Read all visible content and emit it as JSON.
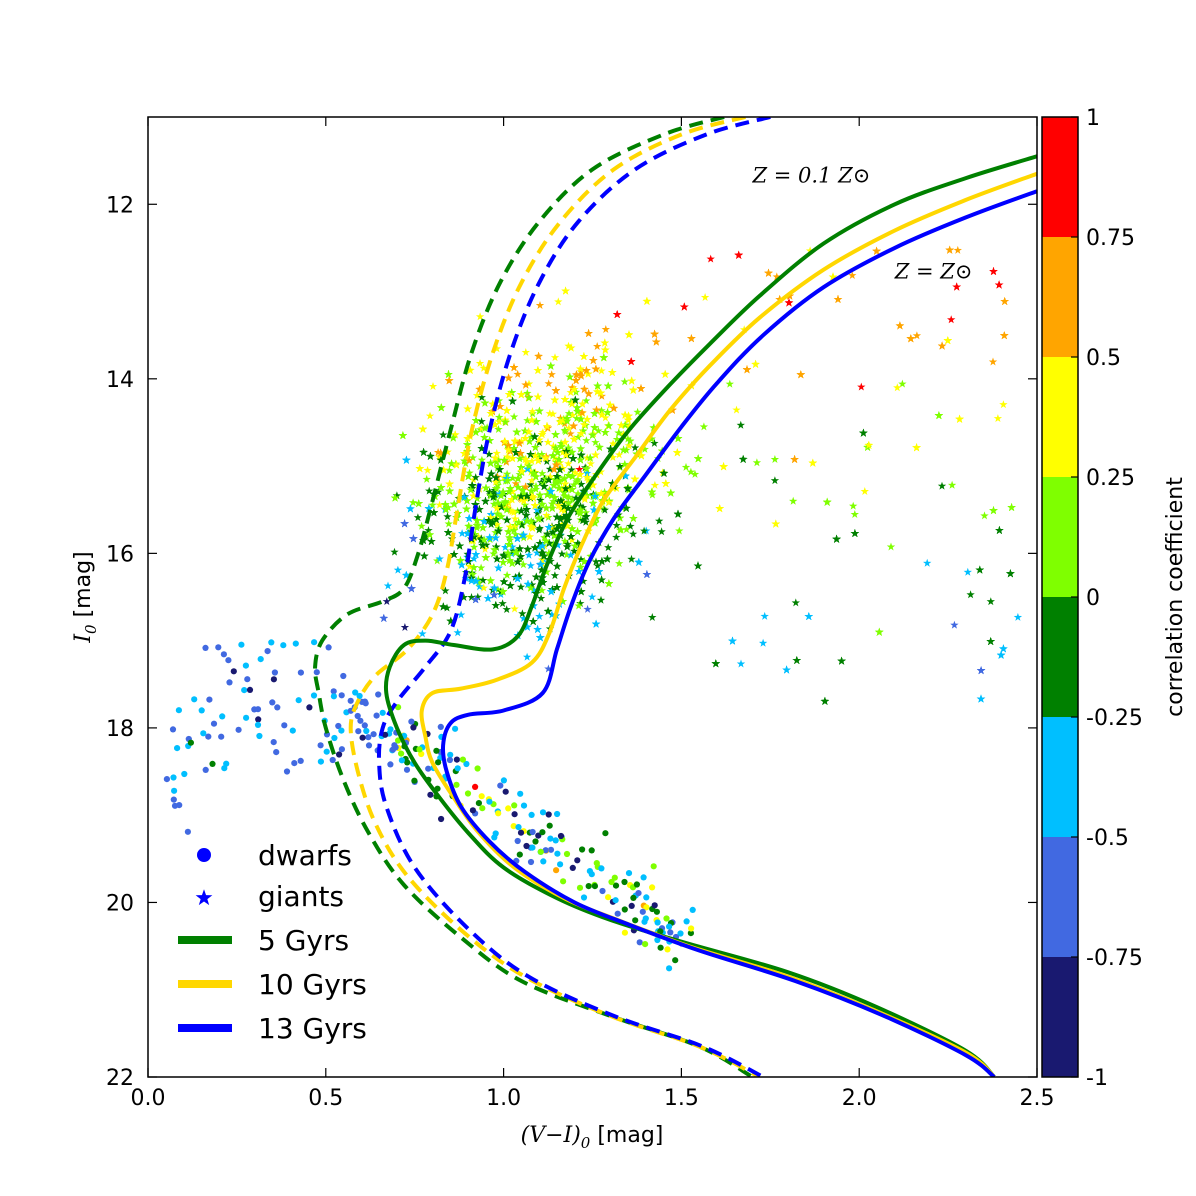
{
  "chart_data": {
    "type": "scatter",
    "xlabel_math": "(V−I)",
    "xlabel_sub": "0",
    "xlabel_unit": " [mag]",
    "ylabel_math": "I",
    "ylabel_sub": "0",
    "ylabel_unit": " [mag]",
    "xlim": [
      0.0,
      2.5
    ],
    "ylim": [
      22,
      11
    ],
    "y_inverted": true,
    "xticks": [
      "0.0",
      "0.5",
      "1.0",
      "1.5",
      "2.0",
      "2.5"
    ],
    "yticks": [
      "12",
      "14",
      "16",
      "18",
      "20",
      "22"
    ],
    "grid": false,
    "colorbar": {
      "label": "correlation coefficient",
      "range": [
        -1,
        1
      ],
      "ticks": [
        "1",
        "0.75",
        "0.5",
        "0.25",
        "0",
        "-0.25",
        "-0.5",
        "-0.75",
        "-1"
      ],
      "colors": [
        "#ff0000",
        "#ffa500",
        "#ffff00",
        "#7fff00",
        "#008000",
        "#00bfff",
        "#4169e1",
        "#191970"
      ]
    },
    "annotations": [
      {
        "text": "Z = 0.1 Z⊙",
        "x": 1.7,
        "y": 11.75
      },
      {
        "text": "Z = Z⊙",
        "x": 2.1,
        "y": 12.85
      }
    ],
    "legend": {
      "position": "lower-left",
      "markers": [
        {
          "label": "dwarfs",
          "marker": "circle",
          "color": "#0000ff"
        },
        {
          "label": "giants",
          "marker": "star",
          "color": "#0000ff"
        }
      ],
      "lines": [
        {
          "label": "5 Gyrs",
          "color": "#008000"
        },
        {
          "label": "10 Gyrs",
          "color": "#ffd700"
        },
        {
          "label": "13 Gyrs",
          "color": "#0000ff"
        }
      ]
    },
    "isochrones": [
      {
        "age": "5 Gyrs",
        "metallicity": "Z = Z⊙",
        "style": "solid",
        "color": "#008000",
        "points": [
          [
            2.5,
            11.45
          ],
          [
            2.3,
            11.7
          ],
          [
            2.1,
            12.0
          ],
          [
            1.9,
            12.45
          ],
          [
            1.72,
            13.05
          ],
          [
            1.58,
            13.6
          ],
          [
            1.46,
            14.1
          ],
          [
            1.35,
            14.6
          ],
          [
            1.26,
            15.1
          ],
          [
            1.18,
            15.6
          ],
          [
            1.12,
            16.15
          ],
          [
            1.08,
            16.6
          ],
          [
            1.04,
            16.95
          ],
          [
            0.97,
            17.1
          ],
          [
            0.86,
            17.05
          ],
          [
            0.78,
            17.0
          ],
          [
            0.72,
            17.05
          ],
          [
            0.68,
            17.3
          ],
          [
            0.67,
            17.6
          ],
          [
            0.7,
            18.0
          ],
          [
            0.75,
            18.4
          ],
          [
            0.82,
            18.8
          ],
          [
            0.9,
            19.2
          ],
          [
            1.0,
            19.6
          ],
          [
            1.15,
            19.95
          ],
          [
            1.3,
            20.2
          ],
          [
            1.5,
            20.45
          ],
          [
            1.8,
            20.8
          ],
          [
            2.05,
            21.2
          ],
          [
            2.3,
            21.7
          ],
          [
            2.38,
            22.0
          ]
        ]
      },
      {
        "age": "10 Gyrs",
        "metallicity": "Z = Z⊙",
        "style": "solid",
        "color": "#ffd700",
        "points": [
          [
            2.5,
            11.65
          ],
          [
            2.3,
            11.95
          ],
          [
            2.1,
            12.3
          ],
          [
            1.9,
            12.75
          ],
          [
            1.72,
            13.3
          ],
          [
            1.58,
            13.85
          ],
          [
            1.47,
            14.35
          ],
          [
            1.37,
            14.9
          ],
          [
            1.28,
            15.4
          ],
          [
            1.22,
            15.9
          ],
          [
            1.17,
            16.4
          ],
          [
            1.13,
            16.9
          ],
          [
            1.08,
            17.25
          ],
          [
            0.98,
            17.45
          ],
          [
            0.88,
            17.55
          ],
          [
            0.8,
            17.6
          ],
          [
            0.77,
            17.8
          ],
          [
            0.78,
            18.1
          ],
          [
            0.8,
            18.4
          ],
          [
            0.86,
            18.8
          ],
          [
            0.93,
            19.2
          ],
          [
            1.03,
            19.6
          ],
          [
            1.17,
            19.95
          ],
          [
            1.32,
            20.2
          ],
          [
            1.52,
            20.5
          ],
          [
            1.8,
            20.85
          ],
          [
            2.05,
            21.25
          ],
          [
            2.3,
            21.72
          ],
          [
            2.38,
            22.0
          ]
        ]
      },
      {
        "age": "13 Gyrs",
        "metallicity": "Z = Z⊙",
        "style": "solid",
        "color": "#0000ff",
        "points": [
          [
            2.5,
            11.85
          ],
          [
            2.3,
            12.15
          ],
          [
            2.1,
            12.5
          ],
          [
            1.9,
            12.95
          ],
          [
            1.73,
            13.5
          ],
          [
            1.6,
            14.05
          ],
          [
            1.5,
            14.55
          ],
          [
            1.4,
            15.1
          ],
          [
            1.31,
            15.6
          ],
          [
            1.24,
            16.1
          ],
          [
            1.19,
            16.6
          ],
          [
            1.15,
            17.1
          ],
          [
            1.11,
            17.6
          ],
          [
            1.0,
            17.8
          ],
          [
            0.9,
            17.85
          ],
          [
            0.85,
            17.95
          ],
          [
            0.83,
            18.2
          ],
          [
            0.84,
            18.5
          ],
          [
            0.88,
            18.9
          ],
          [
            0.96,
            19.3
          ],
          [
            1.06,
            19.65
          ],
          [
            1.2,
            20.0
          ],
          [
            1.35,
            20.25
          ],
          [
            1.55,
            20.55
          ],
          [
            1.82,
            20.9
          ],
          [
            2.07,
            21.3
          ],
          [
            2.3,
            21.75
          ],
          [
            2.38,
            22.0
          ]
        ]
      },
      {
        "age": "5 Gyrs",
        "metallicity": "Z = 0.1 Z⊙",
        "style": "dashed",
        "color": "#008000",
        "points": [
          [
            1.62,
            11.0
          ],
          [
            1.45,
            11.2
          ],
          [
            1.25,
            11.6
          ],
          [
            1.1,
            12.2
          ],
          [
            0.99,
            12.9
          ],
          [
            0.91,
            13.7
          ],
          [
            0.85,
            14.6
          ],
          [
            0.8,
            15.4
          ],
          [
            0.76,
            16.0
          ],
          [
            0.72,
            16.4
          ],
          [
            0.66,
            16.55
          ],
          [
            0.56,
            16.7
          ],
          [
            0.49,
            17.0
          ],
          [
            0.47,
            17.3
          ],
          [
            0.48,
            17.6
          ],
          [
            0.5,
            18.0
          ],
          [
            0.55,
            18.6
          ],
          [
            0.62,
            19.2
          ],
          [
            0.72,
            19.8
          ],
          [
            0.88,
            20.4
          ],
          [
            1.05,
            20.9
          ],
          [
            1.3,
            21.3
          ],
          [
            1.55,
            21.65
          ],
          [
            1.7,
            22.0
          ]
        ]
      },
      {
        "age": "10 Gyrs",
        "metallicity": "Z = 0.1 Z⊙",
        "style": "dashed",
        "color": "#ffd700",
        "points": [
          [
            1.68,
            11.0
          ],
          [
            1.5,
            11.2
          ],
          [
            1.31,
            11.6
          ],
          [
            1.16,
            12.2
          ],
          [
            1.05,
            12.9
          ],
          [
            0.97,
            13.7
          ],
          [
            0.91,
            14.6
          ],
          [
            0.87,
            15.5
          ],
          [
            0.84,
            16.2
          ],
          [
            0.8,
            16.7
          ],
          [
            0.73,
            17.1
          ],
          [
            0.64,
            17.4
          ],
          [
            0.59,
            17.7
          ],
          [
            0.57,
            18.0
          ],
          [
            0.59,
            18.5
          ],
          [
            0.64,
            19.1
          ],
          [
            0.73,
            19.7
          ],
          [
            0.89,
            20.35
          ],
          [
            1.06,
            20.85
          ],
          [
            1.3,
            21.3
          ],
          [
            1.55,
            21.65
          ],
          [
            1.72,
            22.0
          ]
        ]
      },
      {
        "age": "13 Gyrs",
        "metallicity": "Z = 0.1 Z⊙",
        "style": "dashed",
        "color": "#0000ff",
        "points": [
          [
            1.75,
            11.0
          ],
          [
            1.57,
            11.2
          ],
          [
            1.37,
            11.6
          ],
          [
            1.21,
            12.2
          ],
          [
            1.1,
            12.9
          ],
          [
            1.02,
            13.7
          ],
          [
            0.96,
            14.6
          ],
          [
            0.92,
            15.5
          ],
          [
            0.89,
            16.3
          ],
          [
            0.85,
            16.9
          ],
          [
            0.78,
            17.3
          ],
          [
            0.7,
            17.7
          ],
          [
            0.66,
            18.0
          ],
          [
            0.65,
            18.4
          ],
          [
            0.67,
            18.9
          ],
          [
            0.75,
            19.6
          ],
          [
            0.9,
            20.3
          ],
          [
            1.07,
            20.85
          ],
          [
            1.31,
            21.3
          ],
          [
            1.56,
            21.65
          ],
          [
            1.73,
            22.0
          ]
        ]
      }
    ],
    "scatter_series": [
      {
        "name": "giants",
        "marker": "star",
        "n": 3500,
        "distribution": {
          "x_mean": 1.1,
          "x_std": 0.22,
          "y_mean": 15.3,
          "y_std": 1.1,
          "x_range": [
            0.3,
            2.5
          ],
          "y_range": [
            11.3,
            18.0
          ]
        },
        "color_trend": "correlation higher (red) toward bright magnitudes, lower (green/blue) toward faint magnitudes"
      },
      {
        "name": "dwarfs",
        "marker": "circle",
        "n": 300,
        "distribution": {
          "x_range": [
            0.0,
            1.8
          ],
          "y_range": [
            16.9,
            21.0
          ],
          "follows": "main-sequence band"
        },
        "color_trend": "mostly blue/cyan on the blue side, mixed colors on the red side"
      }
    ]
  }
}
